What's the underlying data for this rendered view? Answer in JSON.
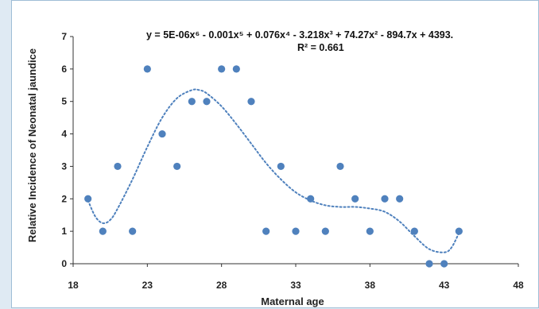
{
  "chart_data": {
    "type": "scatter",
    "xlabel": "Maternal age",
    "ylabel": "Relative Incidence of Neonatal jaundice",
    "xlim": [
      18,
      48
    ],
    "ylim": [
      0,
      7
    ],
    "xticks": [
      18,
      23,
      28,
      33,
      38,
      43,
      48
    ],
    "yticks": [
      0,
      1,
      2,
      3,
      4,
      5,
      6,
      7
    ],
    "x_tick_labels": [
      "18",
      "23",
      "28",
      "33",
      "38",
      "43",
      "48"
    ],
    "y_tick_labels": [
      "0",
      "1",
      "2",
      "3",
      "4",
      "5",
      "6",
      "7"
    ],
    "grid": false,
    "points": [
      {
        "x": 19,
        "y": 2
      },
      {
        "x": 20,
        "y": 1
      },
      {
        "x": 21,
        "y": 3
      },
      {
        "x": 22,
        "y": 1
      },
      {
        "x": 23,
        "y": 6
      },
      {
        "x": 24,
        "y": 4
      },
      {
        "x": 25,
        "y": 3
      },
      {
        "x": 26,
        "y": 5
      },
      {
        "x": 27,
        "y": 5
      },
      {
        "x": 28,
        "y": 6
      },
      {
        "x": 29,
        "y": 6
      },
      {
        "x": 30,
        "y": 5
      },
      {
        "x": 31,
        "y": 1
      },
      {
        "x": 32,
        "y": 3
      },
      {
        "x": 33,
        "y": 1
      },
      {
        "x": 34,
        "y": 2
      },
      {
        "x": 35,
        "y": 1
      },
      {
        "x": 36,
        "y": 3
      },
      {
        "x": 37,
        "y": 2
      },
      {
        "x": 38,
        "y": 1
      },
      {
        "x": 39,
        "y": 2
      },
      {
        "x": 40,
        "y": 2
      },
      {
        "x": 41,
        "y": 1
      },
      {
        "x": 42,
        "y": 0
      },
      {
        "x": 43,
        "y": 0
      },
      {
        "x": 44,
        "y": 1
      }
    ],
    "trendline": {
      "type": "polynomial",
      "order": 6,
      "style": "dotted",
      "equation": "y = 5E-06x⁶ - 0.001x⁵ + 0.076x⁴ - 3.218x³ + 74.27x² - 894.7x + 4393.",
      "r_squared": "R² = 0.661",
      "points": [
        {
          "x": 19,
          "y": 1.95
        },
        {
          "x": 19.5,
          "y": 1.45
        },
        {
          "x": 20,
          "y": 1.25
        },
        {
          "x": 20.5,
          "y": 1.35
        },
        {
          "x": 21,
          "y": 1.7
        },
        {
          "x": 22,
          "y": 2.6
        },
        {
          "x": 23,
          "y": 3.6
        },
        {
          "x": 24,
          "y": 4.5
        },
        {
          "x": 25,
          "y": 5.1
        },
        {
          "x": 26,
          "y": 5.35
        },
        {
          "x": 26.5,
          "y": 5.35
        },
        {
          "x": 27,
          "y": 5.25
        },
        {
          "x": 28,
          "y": 4.85
        },
        {
          "x": 29,
          "y": 4.3
        },
        {
          "x": 30,
          "y": 3.7
        },
        {
          "x": 31,
          "y": 3.1
        },
        {
          "x": 32,
          "y": 2.6
        },
        {
          "x": 33,
          "y": 2.2
        },
        {
          "x": 34,
          "y": 1.95
        },
        {
          "x": 35,
          "y": 1.8
        },
        {
          "x": 36,
          "y": 1.75
        },
        {
          "x": 37,
          "y": 1.75
        },
        {
          "x": 38,
          "y": 1.7
        },
        {
          "x": 39,
          "y": 1.6
        },
        {
          "x": 40,
          "y": 1.3
        },
        {
          "x": 41,
          "y": 0.85
        },
        {
          "x": 42,
          "y": 0.45
        },
        {
          "x": 43,
          "y": 0.35
        },
        {
          "x": 43.5,
          "y": 0.5
        },
        {
          "x": 44,
          "y": 0.95
        }
      ]
    },
    "colors": {
      "marker": "#4f81bd",
      "trendline": "#4f81bd",
      "axis": "#333333"
    }
  }
}
